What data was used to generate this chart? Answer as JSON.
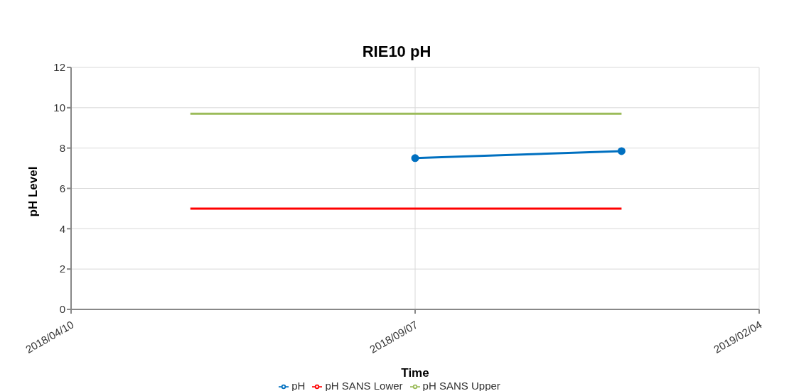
{
  "chart_data": {
    "type": "line",
    "title": "RIE10 pH",
    "xlabel": "Time",
    "ylabel": "pH Level",
    "xlim": [
      "2018-04-10",
      "2019-02-04"
    ],
    "xticks": [
      {
        "value": "2018-04-10",
        "label": "2018/04/10"
      },
      {
        "value": "2018-09-07",
        "label": "2018/09/07"
      },
      {
        "value": "2019-02-04",
        "label": "2019/02/04"
      }
    ],
    "ylim": [
      0,
      12
    ],
    "yticks": [
      0,
      2,
      4,
      6,
      8,
      10,
      12
    ],
    "grid": true,
    "legend": "bottom",
    "line_style": "solid",
    "series": [
      {
        "name": "pH SANS Lower",
        "color": "#ff0000",
        "x": [
          "2018-06-01",
          "2018-12-06"
        ],
        "values": [
          5,
          5
        ],
        "marker": "none"
      },
      {
        "name": "pH SANS Upper",
        "color": "#9bbb59",
        "x": [
          "2018-06-01",
          "2018-12-06"
        ],
        "values": [
          9.7,
          9.7
        ],
        "marker": "none"
      },
      {
        "name": "pH",
        "color": "#0070c0",
        "x": [
          "2018-09-07",
          "2018-12-06"
        ],
        "values": [
          7.5,
          7.85
        ],
        "marker": "circle"
      }
    ]
  }
}
